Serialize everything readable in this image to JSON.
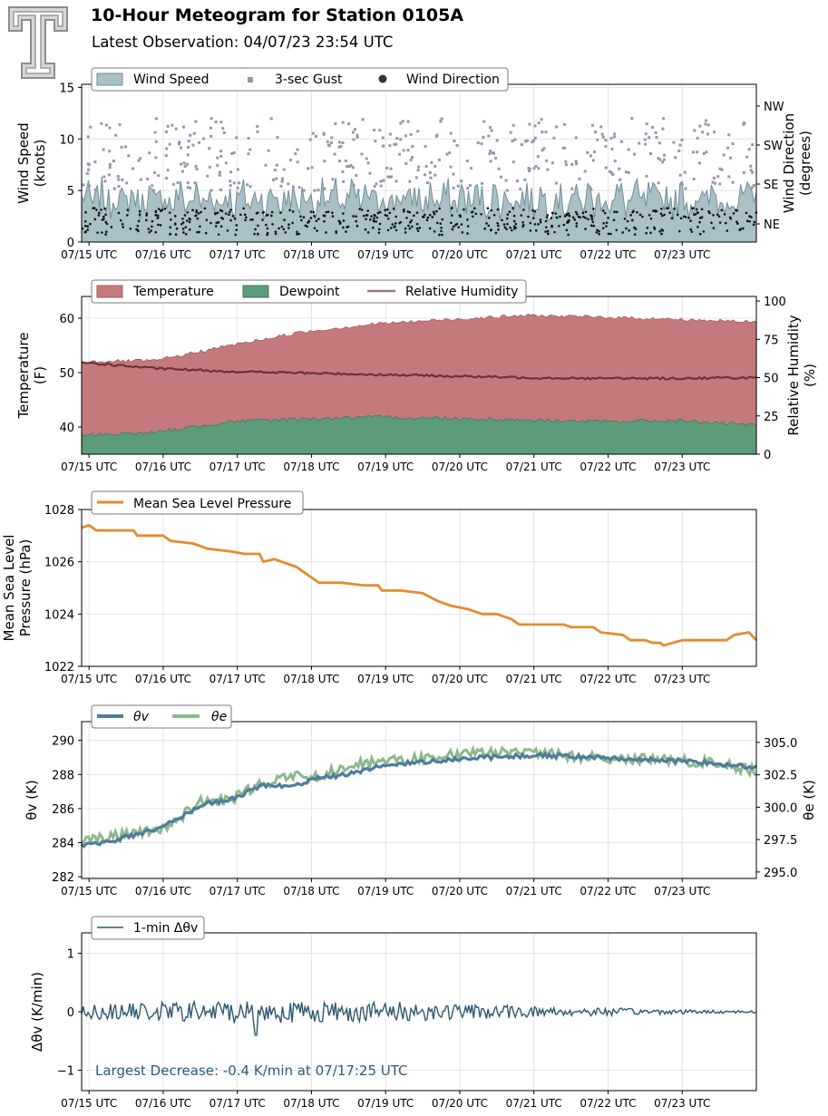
{
  "header": {
    "title": "10-Hour Meteogram for Station 0105A",
    "subtitle": "Latest Observation: 04/07/23 23:54 UTC"
  },
  "x_tick_labels": [
    "07/15 UTC",
    "07/16 UTC",
    "07/17 UTC",
    "07/18 UTC",
    "07/19 UTC",
    "07/20 UTC",
    "07/21 UTC",
    "07/22 UTC",
    "07/23 UTC"
  ],
  "chart_data": [
    {
      "type": "area",
      "panel": "wind",
      "x_range": [
        0,
        9.1
      ],
      "ylim": [
        0,
        15.3
      ],
      "yticks": [
        0,
        5,
        10,
        15
      ],
      "ylabel": [
        "Wind Speed",
        "(knots)"
      ],
      "y2label": [
        "Wind Direction",
        "(degrees)"
      ],
      "y2ticks": [
        "NE",
        "SE",
        "SW",
        "NW"
      ],
      "legend": [
        "Wind Speed",
        "3-sec Gust",
        "Wind Direction"
      ],
      "legend_location": "top-left",
      "grid": true,
      "series": [
        {
          "name": "Wind Speed",
          "kind": "area",
          "color": "#a8c0c6",
          "line_color": "#6e8e96",
          "range": [
            1.5,
            7
          ],
          "typical": 4
        },
        {
          "name": "3-sec Gust",
          "kind": "markers",
          "color": "#9b93ad",
          "range": [
            4,
            13
          ],
          "typical": 8.5
        },
        {
          "name": "Wind Direction",
          "kind": "points",
          "color": "#111111",
          "range": [
            0,
            3.5
          ],
          "typical": 2
        }
      ]
    },
    {
      "type": "area",
      "panel": "temperature",
      "x_range": [
        0,
        9.1
      ],
      "ylim": [
        35,
        64
      ],
      "yticks": [
        40,
        50,
        60
      ],
      "ylabel": [
        "Temperature",
        "(F)"
      ],
      "y2lim": [
        0,
        103
      ],
      "y2ticks": [
        0,
        25,
        50,
        75,
        100
      ],
      "y2label": [
        "Relative Humidity",
        "(%)"
      ],
      "legend": [
        "Temperature",
        "Dewpoint",
        "Relative Humidity"
      ],
      "legend_location": "top-left",
      "grid": true,
      "series": [
        {
          "name": "Temperature",
          "color": "#c47a7c",
          "points": [
            [
              0,
              52
            ],
            [
              1,
              52.2
            ],
            [
              2,
              55
            ],
            [
              3,
              57.5
            ],
            [
              4,
              59
            ],
            [
              5,
              59.8
            ],
            [
              6,
              60.5
            ],
            [
              7,
              60.2
            ],
            [
              8,
              59.8
            ],
            [
              9.1,
              59.3
            ]
          ]
        },
        {
          "name": "Dewpoint",
          "color": "#5c9c78",
          "points": [
            [
              0,
              38.5
            ],
            [
              1,
              39
            ],
            [
              2,
              41
            ],
            [
              3,
              41.5
            ],
            [
              4,
              41.8
            ],
            [
              5,
              41.6
            ],
            [
              6,
              41.3
            ],
            [
              7,
              41
            ],
            [
              8,
              41.2
            ],
            [
              9.1,
              40.3
            ]
          ]
        },
        {
          "name": "Relative Humidity",
          "color": "#6e3234",
          "axis": "right",
          "points": [
            [
              0,
              60
            ],
            [
              1,
              56
            ],
            [
              2,
              54
            ],
            [
              3,
              53
            ],
            [
              4,
              52
            ],
            [
              5,
              51
            ],
            [
              6,
              50
            ],
            [
              7,
              49.5
            ],
            [
              8,
              49.5
            ],
            [
              9.1,
              50
            ]
          ]
        }
      ]
    },
    {
      "type": "line",
      "panel": "pressure",
      "x_range": [
        0,
        9.1
      ],
      "ylim": [
        1022,
        1028
      ],
      "yticks": [
        1022,
        1024,
        1026,
        1028
      ],
      "ylabel": [
        "Mean Sea Level",
        "Pressure (hPa)"
      ],
      "legend": [
        "Mean Sea Level Pressure"
      ],
      "legend_location": "top-left",
      "grid": true,
      "series": [
        {
          "name": "Mean Sea Level Pressure",
          "color": "#e68a2e",
          "points": [
            [
              0,
              1027.3
            ],
            [
              0.1,
              1027.4
            ],
            [
              0.2,
              1027.2
            ],
            [
              0.7,
              1027.2
            ],
            [
              0.75,
              1027.0
            ],
            [
              1.1,
              1027.0
            ],
            [
              1.2,
              1026.8
            ],
            [
              1.5,
              1026.7
            ],
            [
              1.7,
              1026.5
            ],
            [
              2.0,
              1026.4
            ],
            [
              2.2,
              1026.3
            ],
            [
              2.4,
              1026.3
            ],
            [
              2.45,
              1026.0
            ],
            [
              2.6,
              1026.1
            ],
            [
              2.9,
              1025.8
            ],
            [
              3.1,
              1025.4
            ],
            [
              3.2,
              1025.2
            ],
            [
              3.5,
              1025.2
            ],
            [
              3.8,
              1025.1
            ],
            [
              4.0,
              1025.1
            ],
            [
              4.05,
              1024.9
            ],
            [
              4.3,
              1024.9
            ],
            [
              4.6,
              1024.8
            ],
            [
              4.8,
              1024.5
            ],
            [
              5.0,
              1024.3
            ],
            [
              5.2,
              1024.2
            ],
            [
              5.4,
              1024.0
            ],
            [
              5.6,
              1024.0
            ],
            [
              5.8,
              1023.8
            ],
            [
              5.9,
              1023.6
            ],
            [
              6.3,
              1023.6
            ],
            [
              6.5,
              1023.6
            ],
            [
              6.6,
              1023.5
            ],
            [
              6.9,
              1023.5
            ],
            [
              7.0,
              1023.3
            ],
            [
              7.3,
              1023.2
            ],
            [
              7.4,
              1023.0
            ],
            [
              7.6,
              1023.0
            ],
            [
              7.7,
              1022.9
            ],
            [
              7.8,
              1022.9
            ],
            [
              7.85,
              1022.8
            ],
            [
              8.1,
              1023.0
            ],
            [
              8.7,
              1023.0
            ],
            [
              8.8,
              1023.2
            ],
            [
              9.0,
              1023.3
            ],
            [
              9.1,
              1023.0
            ]
          ]
        }
      ]
    },
    {
      "type": "line",
      "panel": "theta",
      "x_range": [
        0,
        9.1
      ],
      "ylim": [
        281.9,
        291.1
      ],
      "yticks": [
        282,
        284,
        286,
        288,
        290
      ],
      "ylabel": "θv (K)",
      "y2lim": [
        294.5,
        306.6
      ],
      "y2ticks": [
        295.0,
        297.5,
        300.0,
        302.5,
        305.0
      ],
      "y2label": "θe (K)",
      "legend": [
        "θv",
        "θe"
      ],
      "legend_location": "top-left",
      "grid": true,
      "series": [
        {
          "name": "θv",
          "color": "#4d7d99",
          "points": [
            [
              0,
              283.8
            ],
            [
              0.5,
              284.2
            ],
            [
              1,
              284.8
            ],
            [
              1.3,
              285.4
            ],
            [
              1.6,
              286.2
            ],
            [
              2,
              286.5
            ],
            [
              2.4,
              287.3
            ],
            [
              2.9,
              287.4
            ],
            [
              3.2,
              287.8
            ],
            [
              3.6,
              288.0
            ],
            [
              4,
              288.5
            ],
            [
              4.5,
              288.7
            ],
            [
              5,
              288.9
            ],
            [
              5.5,
              289.0
            ],
            [
              6,
              289.1
            ],
            [
              6.5,
              289.1
            ],
            [
              7,
              289.0
            ],
            [
              7.5,
              288.9
            ],
            [
              8,
              288.8
            ],
            [
              8.5,
              288.7
            ],
            [
              9.1,
              288.4
            ]
          ]
        },
        {
          "name": "θe",
          "color": "#8cb88e",
          "points": [
            [
              0,
              297.3
            ],
            [
              0.5,
              297.8
            ],
            [
              1,
              298.2
            ],
            [
              1.3,
              299.0
            ],
            [
              1.6,
              300.5
            ],
            [
              2,
              300.5
            ],
            [
              2.4,
              301.8
            ],
            [
              2.9,
              302.4
            ],
            [
              3.2,
              302.4
            ],
            [
              3.6,
              303.3
            ],
            [
              4,
              303.5
            ],
            [
              4.5,
              303.7
            ],
            [
              5,
              304.0
            ],
            [
              5.5,
              304.2
            ],
            [
              6,
              304.3
            ],
            [
              6.5,
              304.0
            ],
            [
              7,
              303.8
            ],
            [
              7.5,
              303.7
            ],
            [
              8,
              303.6
            ],
            [
              8.5,
              303.4
            ],
            [
              9.1,
              302.8
            ]
          ]
        }
      ]
    },
    {
      "type": "line",
      "panel": "dtheta",
      "x_range": [
        0,
        9.1
      ],
      "ylim": [
        -1.35,
        1.35
      ],
      "yticks": [
        -1,
        0,
        1
      ],
      "ylabel": "Δθv (K/min)",
      "legend": [
        "1-min Δθv"
      ],
      "legend_location": "top-left",
      "grid": true,
      "annotation": "Largest Decrease: -0.4 K/min at 07/17:25 UTC",
      "series": [
        {
          "name": "1-min Δθv",
          "color": "#2e5a70",
          "amplitude_by_x": [
            [
              0,
              0.12
            ],
            [
              2,
              0.2
            ],
            [
              4,
              0.18
            ],
            [
              6,
              0.1
            ],
            [
              8,
              0.04
            ],
            [
              9.1,
              0.02
            ]
          ],
          "minimum": -0.4
        }
      ]
    }
  ]
}
